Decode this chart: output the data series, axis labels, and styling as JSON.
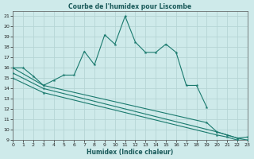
{
  "title": "Courbe de l'humidex pour Liscombe",
  "xlabel": "Humidex (Indice chaleur)",
  "main_x": [
    0,
    1,
    2,
    3,
    4,
    5,
    6,
    7,
    8,
    9,
    10,
    11,
    12,
    13,
    14,
    15,
    16,
    17,
    18,
    19
  ],
  "main_y": [
    16.0,
    16.0,
    15.2,
    14.3,
    14.8,
    15.3,
    15.3,
    17.6,
    16.3,
    19.2,
    18.3,
    21.0,
    18.5,
    17.5,
    17.5,
    18.3,
    17.5,
    14.3,
    14.3,
    12.2
  ],
  "line1_x": [
    0,
    3,
    19,
    20,
    22,
    23
  ],
  "line1_y": [
    16.0,
    14.3,
    10.7,
    9.8,
    9.2,
    9.0
  ],
  "line2_x": [
    0,
    3,
    20,
    21,
    22,
    23
  ],
  "line2_y": [
    15.5,
    14.0,
    9.8,
    9.5,
    9.2,
    9.3
  ],
  "line3_x": [
    0,
    3,
    20,
    21,
    22,
    23
  ],
  "line3_y": [
    15.0,
    13.6,
    9.5,
    9.3,
    9.0,
    9.0
  ],
  "bg_color": "#ceeaea",
  "grid_color": "#b8d8d8",
  "line_color": "#1a7a6e",
  "ylim": [
    9,
    21.5
  ],
  "xlim": [
    0,
    23
  ],
  "yticks": [
    9,
    10,
    11,
    12,
    13,
    14,
    15,
    16,
    17,
    18,
    19,
    20,
    21
  ],
  "xticks": [
    0,
    1,
    2,
    3,
    4,
    5,
    6,
    7,
    8,
    9,
    10,
    11,
    12,
    13,
    14,
    15,
    16,
    17,
    18,
    19,
    20,
    21,
    22,
    23
  ]
}
